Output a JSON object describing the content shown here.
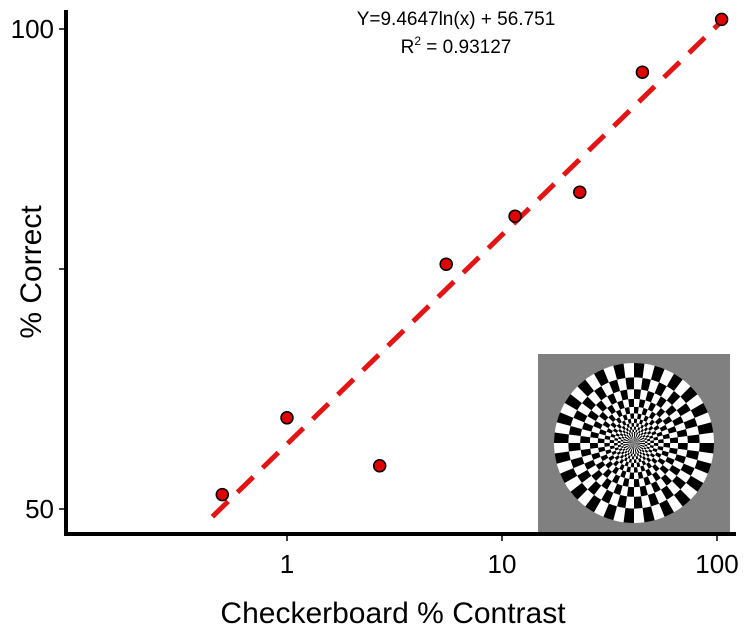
{
  "chart_data": {
    "type": "scatter",
    "title": "",
    "xlabel": "Checkerboard % Contrast",
    "ylabel": "% Correct",
    "x_scale": "log",
    "xlim": [
      0.25,
      110
    ],
    "ylim": [
      49,
      100
    ],
    "x_ticks": [
      {
        "value": 1,
        "label": "1"
      },
      {
        "value": 10,
        "label": "10"
      },
      {
        "value": 100,
        "label": "100"
      }
    ],
    "y_ticks": [
      {
        "value": 50,
        "label": "50"
      },
      {
        "value": 75,
        "label": ""
      },
      {
        "value": 100,
        "label": "100"
      }
    ],
    "grid": false,
    "legend": "none",
    "series": [
      {
        "points": [
          {
            "x": 0.5,
            "y": 51.5
          },
          {
            "x": 1.0,
            "y": 59.5
          },
          {
            "x": 2.7,
            "y": 54.5
          },
          {
            "x": 5.5,
            "y": 75.5
          },
          {
            "x": 11.5,
            "y": 80.5
          },
          {
            "x": 23,
            "y": 83.0
          },
          {
            "x": 45,
            "y": 95.5
          },
          {
            "x": 105,
            "y": 101.0
          }
        ],
        "marker_color": "#e00000",
        "marker_edge": "#000000"
      }
    ],
    "fit": {
      "type": "log",
      "a": 9.4647,
      "b": 56.751,
      "x_range": [
        0.45,
        110
      ],
      "color": "#e31414",
      "style": "dashed"
    },
    "annotations": {
      "equation": "Y=9.4647ln(x) + 56.751",
      "r2_prefix": "R",
      "r2_sup": "2",
      "r2_suffix": " = 0.93127"
    },
    "inset": {
      "description_icon": "checkerboard-dartboard-icon",
      "background": "#808080",
      "rings": 11,
      "sectors": 48
    }
  }
}
